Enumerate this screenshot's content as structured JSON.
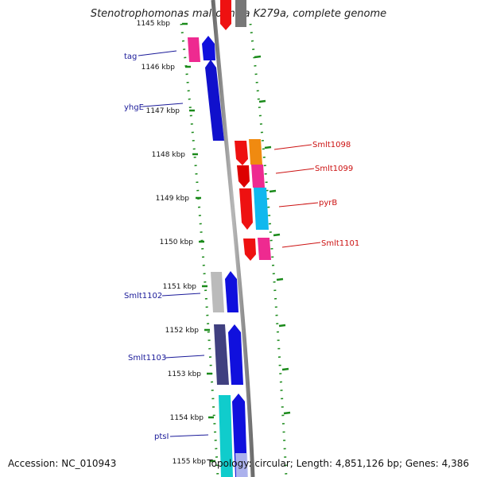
{
  "title": "Stenotrophomonas maltophilia K279a, complete genome",
  "footer": {
    "accession": "Accession: NC_010943",
    "summary": "Topology: circular; Length: 4,851,126 bp; Genes: 4,386"
  },
  "colors": {
    "backbone": "#8c8c8c",
    "tick": "#1a8a1a",
    "label_left": "#1a1a99",
    "label_right": "#cc1111"
  },
  "ticks": [
    "1145 kbp",
    "1146 kbp",
    "1147 kbp",
    "1148 kbp",
    "1149 kbp",
    "1150 kbp",
    "1151 kbp",
    "1152 kbp",
    "1153 kbp",
    "1154 kbp",
    "1155 kbp"
  ],
  "gene_labels_left": [
    "tag",
    "yhgE",
    "Smlt1102",
    "Smlt1103",
    "ptsI"
  ],
  "gene_labels_right": [
    "Smlt1098",
    "Smlt1099",
    "pyrB",
    "Smlt1101"
  ]
}
